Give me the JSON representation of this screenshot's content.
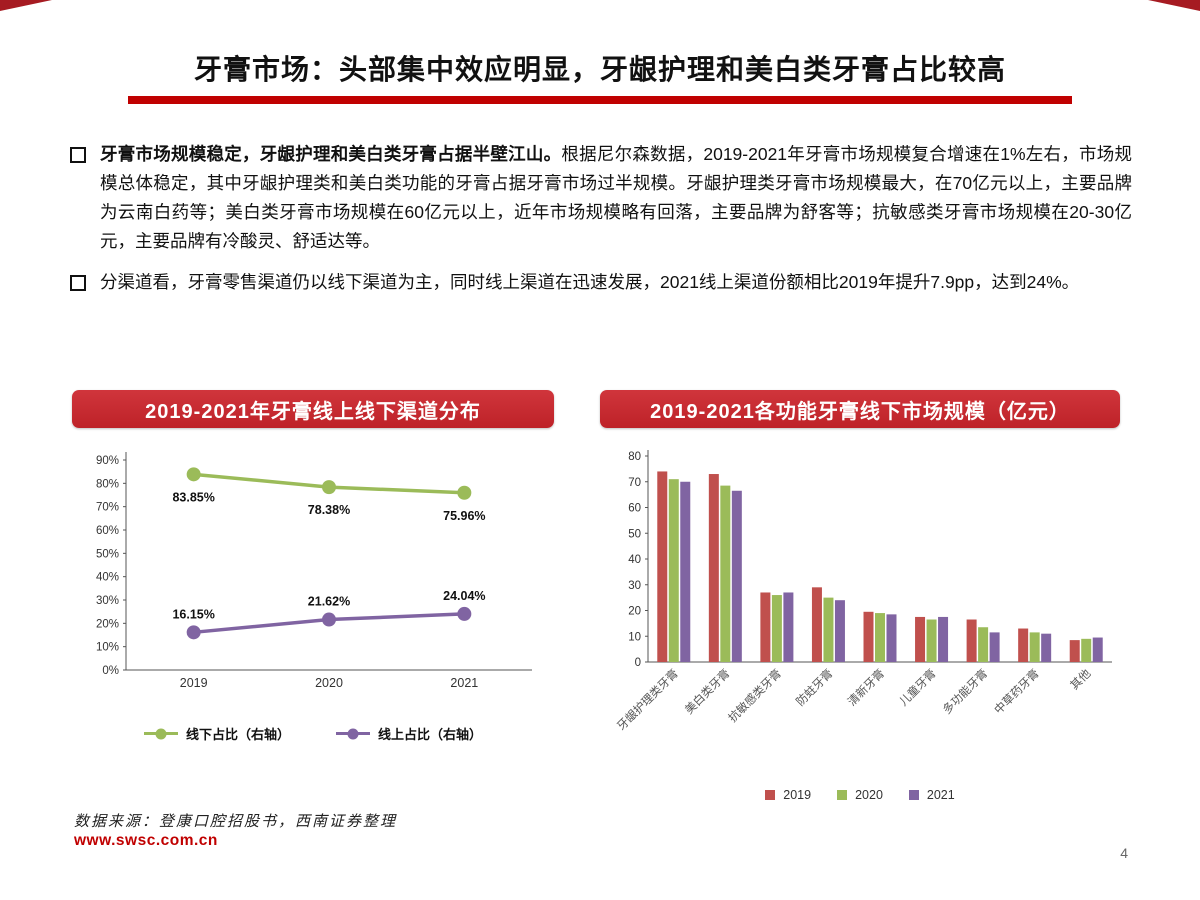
{
  "page": {
    "title": "牙膏市场：头部集中效应明显，牙龈护理和美白类牙膏占比较高",
    "page_number": "4",
    "footer": {
      "source": "数据来源：登康口腔招股书，西南证券整理",
      "website": "www.swsc.com.cn"
    }
  },
  "colors": {
    "accent_red": "#C00000",
    "header_red": "#BE2228",
    "series_red": "#C0504D",
    "series_green": "#9BBB59",
    "series_purple": "#8064A2"
  },
  "bullets": [
    {
      "lead": "牙膏市场规模稳定，牙龈护理和美白类牙膏占据半壁江山。",
      "rest": "根据尼尔森数据，2019-2021年牙膏市场规模复合增速在1%左右，市场规模总体稳定，其中牙龈护理类和美白类功能的牙膏占据牙膏市场过半规模。牙龈护理类牙膏市场规模最大，在70亿元以上，主要品牌为云南白药等；美白类牙膏市场规模在60亿元以上，近年市场规模略有回落，主要品牌为舒客等；抗敏感类牙膏市场规模在20-30亿元，主要品牌有冷酸灵、舒适达等。"
    },
    {
      "lead": "",
      "rest": "分渠道看，牙膏零售渠道仍以线下渠道为主，同时线上渠道在迅速发展，2021线上渠道份额相比2019年提升7.9pp，达到24%。"
    }
  ],
  "chart_data": [
    {
      "type": "line",
      "title": "2019-2021年牙膏线上线下渠道分布",
      "x": [
        "2019",
        "2020",
        "2021"
      ],
      "series": [
        {
          "name": "线下占比（右轴）",
          "color": "#9BBB59",
          "values": [
            83.85,
            78.38,
            75.96
          ],
          "label_dy": 27
        },
        {
          "name": "线上占比（右轴）",
          "color": "#8064A2",
          "values": [
            16.15,
            21.62,
            24.04
          ],
          "label_dy": -14
        }
      ],
      "ylim": [
        0,
        90
      ],
      "ytick_step": 10,
      "ytick_suffix": "%",
      "value_suffix": "%",
      "legend_position": "bottom",
      "grid": false
    },
    {
      "type": "bar",
      "title": "2019-2021各功能牙膏线下市场规模（亿元）",
      "categories": [
        "牙龈护理类牙膏",
        "美白类牙膏",
        "抗敏感类牙膏",
        "防蛀牙膏",
        "清新牙膏",
        "儿童牙膏",
        "多功能牙膏",
        "中草药牙膏",
        "其他"
      ],
      "series": [
        {
          "name": "2019",
          "color": "#C0504D",
          "values": [
            74,
            73,
            27,
            29,
            19.5,
            17.5,
            16.5,
            13,
            8.5
          ]
        },
        {
          "name": "2020",
          "color": "#9BBB59",
          "values": [
            71,
            68.5,
            26,
            25,
            19,
            16.5,
            13.5,
            11.5,
            9
          ]
        },
        {
          "name": "2021",
          "color": "#8064A2",
          "values": [
            70,
            66.5,
            27,
            24,
            18.5,
            17.5,
            11.5,
            11,
            9.5
          ]
        }
      ],
      "ylim": [
        0,
        80
      ],
      "ytick_step": 10,
      "legend_position": "bottom",
      "grid": false
    }
  ]
}
